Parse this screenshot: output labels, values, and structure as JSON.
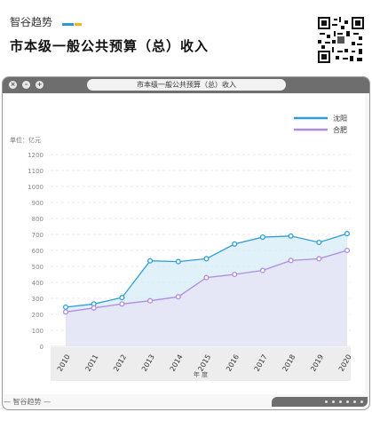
{
  "brand": {
    "name": "智谷趋势",
    "footer_name": "智谷趋势",
    "bar_colors": [
      "#2a9ad6",
      "#f2b51d"
    ]
  },
  "headline": "市本级一般公共预算（总）收入",
  "window": {
    "title": "市本级一般公共预算（总）收入"
  },
  "chart_data": {
    "type": "area",
    "title": "市本级一般公共预算（总）收入",
    "unit_label": "单位：亿元",
    "xlabel": "年 度",
    "ylabel": "",
    "ylim": [
      0,
      1200
    ],
    "yticks": [
      0,
      100,
      200,
      300,
      400,
      500,
      600,
      700,
      800,
      900,
      1000,
      1100,
      1200
    ],
    "ytick_labels": [
      "0",
      "100",
      "200",
      "300",
      "400",
      "500",
      "600",
      "700",
      "800",
      "900",
      "1000",
      "1100",
      "1200"
    ],
    "categories": [
      "2010",
      "2011",
      "2012",
      "2013",
      "2014",
      "2015",
      "2016",
      "2017",
      "2018",
      "2019",
      "2020"
    ],
    "grid": true,
    "legend_position": "top-right",
    "series": [
      {
        "name": "沈阳",
        "color": "#2f9ed8",
        "fill": "#d6ecf7",
        "values": [
          245,
          265,
          305,
          535,
          530,
          548,
          640,
          683,
          690,
          650,
          705
        ]
      },
      {
        "name": "合肥",
        "color": "#b08be0",
        "fill": "#e7e3f6",
        "values": [
          215,
          240,
          265,
          285,
          310,
          430,
          450,
          475,
          537,
          548,
          600
        ]
      }
    ]
  }
}
